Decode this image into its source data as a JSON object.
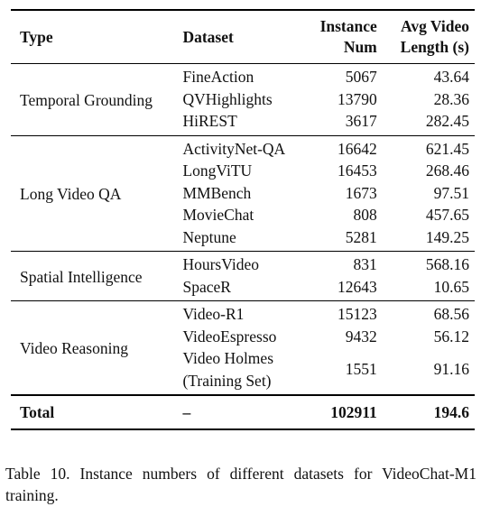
{
  "table": {
    "header": [
      "Type",
      "Dataset",
      "Instance\nNum",
      "Avg Video\nLength (s)"
    ],
    "groups": [
      {
        "type": "Temporal Grounding",
        "rows": [
          [
            "FineAction",
            5067,
            43.64
          ],
          [
            "QVHighlights",
            13790,
            28.36
          ],
          [
            "HiREST",
            3617,
            282.45
          ]
        ]
      },
      {
        "type": "Long Video QA",
        "rows": [
          [
            "ActivityNet-QA",
            16642,
            621.45
          ],
          [
            "LongViTU",
            16453,
            268.46
          ],
          [
            "MMBench",
            1673,
            97.51
          ],
          [
            "MovieChat",
            808,
            457.65
          ],
          [
            "Neptune",
            5281,
            149.25
          ]
        ]
      },
      {
        "type": "Spatial Intelligence",
        "rows": [
          [
            "HoursVideo",
            831,
            568.16
          ],
          [
            "SpaceR",
            12643,
            10.65
          ]
        ]
      },
      {
        "type": "Video Reasoning",
        "rows": [
          [
            "Video-R1",
            15123,
            68.56
          ],
          [
            "VideoEspresso",
            9432,
            56.12
          ],
          [
            "Video Holmes\n(Training Set)",
            1551,
            91.16
          ]
        ]
      }
    ],
    "total": [
      "Total",
      "–",
      102911,
      194.6
    ]
  },
  "caption": "Table 10. Instance numbers of different datasets for VideoChat-M1 training."
}
